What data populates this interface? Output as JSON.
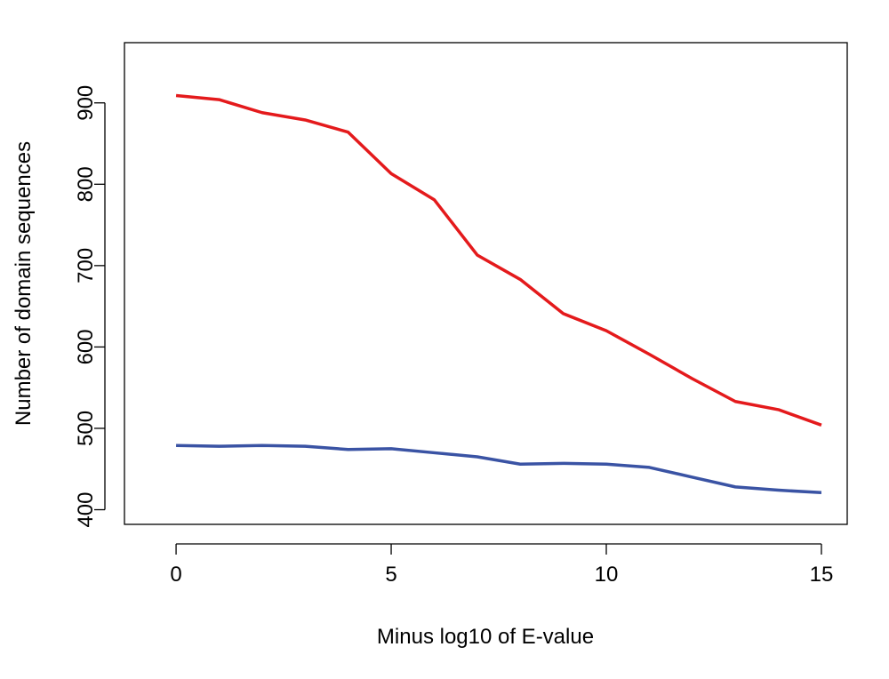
{
  "chart_data": {
    "type": "line",
    "title": "",
    "xlabel": "Minus log10 of E-value",
    "ylabel": "Number of domain sequences",
    "xlim": [
      -1.2,
      15.6
    ],
    "ylim": [
      382,
      974
    ],
    "xticks": [
      0,
      5,
      10,
      15
    ],
    "yticks": [
      400,
      500,
      600,
      700,
      800,
      900
    ],
    "grid": false,
    "legend": "none",
    "x": [
      0,
      1,
      2,
      3,
      4,
      5,
      6,
      7,
      8,
      9,
      10,
      11,
      12,
      13,
      14,
      15
    ],
    "series": [
      {
        "color": "#e41a1c",
        "values": [
          909,
          904,
          888,
          879,
          864,
          813,
          781,
          713,
          683,
          641,
          620,
          591,
          561,
          533,
          523,
          504
        ]
      },
      {
        "color": "#3a53a4",
        "values": [
          479,
          478,
          479,
          478,
          474,
          475,
          470,
          465,
          456,
          457,
          456,
          452,
          440,
          428,
          424,
          421
        ]
      }
    ]
  }
}
